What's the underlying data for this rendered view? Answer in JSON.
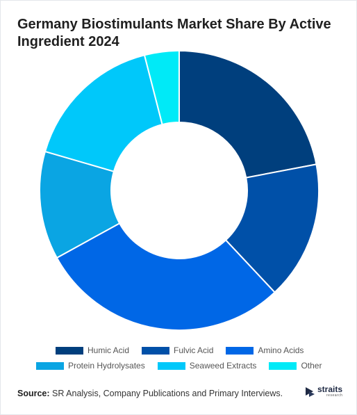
{
  "title": "Germany Biostimulants Market Share By Active Ingredient 2024",
  "source": {
    "label": "Source:",
    "text": " SR Analysis, Company Publications and Primary Interviews."
  },
  "logo": {
    "name": "straits",
    "sub": "research",
    "icon": "straits-logo-icon"
  },
  "chart_data": {
    "type": "pie",
    "subtype": "donut",
    "categories": [
      "Humic Acid",
      "Fulvic Acid",
      "Amino Acids",
      "Protein Hydrolysates",
      "Seaweed Extracts",
      "Other"
    ],
    "values": [
      22,
      16,
      29,
      12.5,
      16.5,
      4
    ],
    "colors": [
      "#003f7d",
      "#0050a8",
      "#0067e6",
      "#0aa5e3",
      "#00c8fa",
      "#00eaf7"
    ],
    "legend_position": "bottom"
  }
}
